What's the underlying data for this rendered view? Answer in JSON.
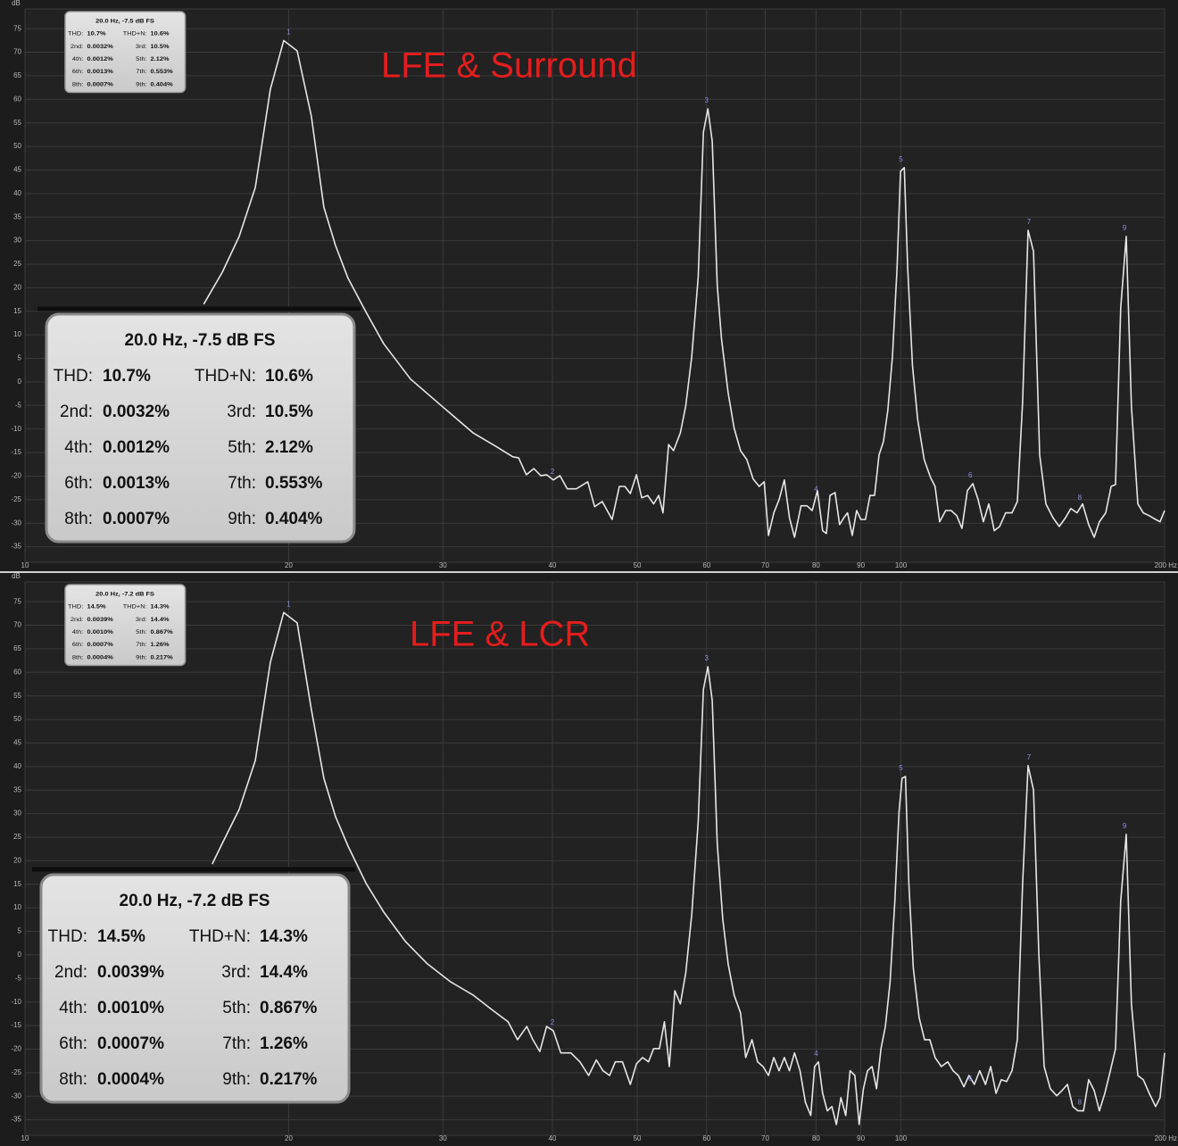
{
  "chart_data": [
    {
      "type": "line",
      "title": "LFE & Surround",
      "y_label": "dB",
      "xscale": "log",
      "grid": true,
      "color": "#e6e6e6",
      "xlim": [
        10,
        200
      ],
      "ylim": [
        -38.3,
        79.2
      ],
      "xticks": [
        10,
        20,
        30,
        40,
        50,
        60,
        70,
        80,
        90,
        100,
        {
          "value": 200,
          "label": "200 Hz"
        }
      ],
      "yticks": [
        75,
        70,
        65,
        60,
        55,
        50,
        45,
        40,
        35,
        30,
        25,
        20,
        15,
        10,
        5,
        0,
        -5,
        -10,
        -15,
        -20,
        -25,
        -30,
        -35
      ],
      "x": [
        16.0,
        16.8,
        17.56,
        18.32,
        19.06,
        19.74,
        20.45,
        21.23,
        21.94,
        22.62,
        23.38,
        24.51,
        25.68,
        27.55,
        29.9,
        32.47,
        34.43,
        36.05,
        36.6,
        37.36,
        38.1,
        38.8,
        39.4,
        40.1,
        40.8,
        41.6,
        42.6,
        43.9,
        44.7,
        45.6,
        46.8,
        47.7,
        48.4,
        49.1,
        49.9,
        50.6,
        51.4,
        52.2,
        52.9,
        53.5,
        54.3,
        55.0,
        56.0,
        56.8,
        57.7,
        58.7,
        59.5,
        60.2,
        60.9,
        61.7,
        62.4,
        63.5,
        64.5,
        65.6,
        66.7,
        67.8,
        68.9,
        69.8,
        70.6,
        71.6,
        72.6,
        73.6,
        74.6,
        75.6,
        76.9,
        78.1,
        79.2,
        80.3,
        81.4,
        82.2,
        83.0,
        84.1,
        85.1,
        86.1,
        86.9,
        88.0,
        89.0,
        90.0,
        91.1,
        92.2,
        93.3,
        94.4,
        95.5,
        96.6,
        97.8,
        99.0,
        99.9,
        100.9,
        101.8,
        103.1,
        104.5,
        106.3,
        108.1,
        109.4,
        110.7,
        112.5,
        114.1,
        115.8,
        117.4,
        119.1,
        120.8,
        122.5,
        124.2,
        126.0,
        127.8,
        129.6,
        131.7,
        133.9,
        135.8,
        137.7,
        139.7,
        141.7,
        144.0,
        146.4,
        149.1,
        151.6,
        154.2,
        156.3,
        158.9,
        161.2,
        163.8,
        166.2,
        168.5,
        171.3,
        173.8,
        175.8,
        178.2,
        180.8,
        183.3,
        186.4,
        189.1,
        192.1,
        195.3,
        197.6,
        200
      ],
      "values": [
        16.5,
        23.3,
        30.9,
        41.3,
        62.1,
        72.5,
        70.3,
        56.4,
        37.1,
        29.0,
        22.0,
        14.8,
        8.1,
        0.6,
        -5.1,
        -10.8,
        -13.6,
        -15.9,
        -16.1,
        -19.7,
        -18.4,
        -19.9,
        -19.7,
        -20.8,
        -19.9,
        -22.7,
        -22.7,
        -21.2,
        -26.5,
        -25.4,
        -29.2,
        -22.2,
        -22.2,
        -23.7,
        -19.7,
        -24.6,
        -24.1,
        -25.9,
        -24.1,
        -27.8,
        -13.3,
        -14.6,
        -10.8,
        -5.1,
        5.3,
        22.3,
        53.0,
        58.0,
        51.1,
        20.5,
        9.1,
        -2.3,
        -9.8,
        -14.6,
        -16.5,
        -20.6,
        -22.2,
        -21.2,
        -32.6,
        -27.8,
        -25.0,
        -20.8,
        -28.8,
        -33.0,
        -26.3,
        -26.3,
        -27.3,
        -23.1,
        -31.6,
        -32.2,
        -24.1,
        -23.5,
        -30.3,
        -28.8,
        -27.8,
        -32.6,
        -27.3,
        -29.2,
        -29.2,
        -24.1,
        -24.1,
        -15.5,
        -12.7,
        -6.1,
        5.3,
        24.2,
        44.7,
        45.5,
        24.2,
        3.4,
        -8.0,
        -16.5,
        -20.3,
        -22.2,
        -29.7,
        -27.3,
        -27.3,
        -28.4,
        -31.1,
        -23.1,
        -21.6,
        -25.0,
        -29.7,
        -25.9,
        -31.6,
        -30.7,
        -27.8,
        -27.8,
        -25.4,
        -4.2,
        32.2,
        27.7,
        -15.5,
        -25.9,
        -28.8,
        -30.7,
        -28.8,
        -26.9,
        -27.8,
        -25.9,
        -30.3,
        -33.0,
        -29.7,
        -27.8,
        -22.2,
        -21.8,
        15.7,
        30.9,
        -5.1,
        -25.9,
        -27.8,
        -28.4,
        -29.2,
        -29.7,
        -27.3
      ],
      "harmonics": {
        "labels": [
          1,
          2,
          3,
          4,
          5,
          6,
          7,
          8,
          9
        ],
        "x": [
          20,
          40,
          60,
          80,
          100,
          120,
          140,
          160,
          180
        ],
        "values": [
          72.5,
          -20.8,
          58.0,
          -24.5,
          45.5,
          -21.6,
          32.2,
          -26.3,
          30.9
        ]
      },
      "info": {
        "title": "20.0 Hz, -7.5 dB FS",
        "rows": [
          [
            "THD:",
            "10.7%",
            "THD+N:",
            "10.6%"
          ],
          [
            "2nd:",
            "0.0032%",
            "3rd:",
            "10.5%"
          ],
          [
            "4th:",
            "0.0012%",
            "5th:",
            "2.12%"
          ],
          [
            "6th:",
            "0.0013%",
            "7th:",
            "0.553%"
          ],
          [
            "8th:",
            "0.0007%",
            "9th:",
            "0.404%"
          ]
        ]
      }
    },
    {
      "type": "line",
      "title": "LFE & LCR",
      "y_label": "dB",
      "xscale": "log",
      "grid": true,
      "color": "#e6e6e6",
      "xlim": [
        10,
        200
      ],
      "ylim": [
        -38.3,
        79.2
      ],
      "xticks": [
        10,
        20,
        30,
        40,
        50,
        60,
        70,
        80,
        90,
        100,
        {
          "value": 200,
          "label": "200 Hz"
        }
      ],
      "yticks": [
        75,
        70,
        65,
        60,
        55,
        50,
        45,
        40,
        35,
        30,
        25,
        20,
        15,
        10,
        5,
        0,
        -5,
        -10,
        -15,
        -20,
        -25,
        -30,
        -35
      ],
      "x": [
        16.36,
        16.8,
        17.56,
        18.32,
        19.06,
        19.74,
        20.45,
        21.23,
        21.94,
        22.62,
        23.38,
        24.51,
        25.68,
        27.2,
        28.8,
        30.6,
        32.47,
        34.0,
        35.6,
        36.5,
        37.4,
        38.0,
        38.7,
        39.4,
        40.1,
        40.9,
        42.0,
        43.0,
        44.0,
        44.9,
        45.7,
        46.5,
        47.2,
        48.1,
        49.1,
        49.9,
        50.7,
        51.5,
        52.2,
        53.0,
        53.7,
        54.4,
        55.2,
        56.0,
        56.8,
        57.7,
        58.7,
        59.5,
        60.2,
        60.9,
        61.7,
        62.6,
        63.5,
        64.5,
        65.6,
        66.5,
        67.6,
        68.6,
        69.6,
        70.6,
        71.6,
        72.6,
        73.6,
        74.6,
        75.6,
        76.7,
        77.8,
        78.9,
        79.7,
        80.5,
        81.4,
        82.4,
        83.4,
        84.4,
        85.4,
        86.5,
        87.5,
        88.6,
        89.6,
        90.6,
        91.6,
        92.7,
        93.8,
        94.9,
        96.0,
        97.2,
        98.4,
        99.5,
        100.3,
        101.2,
        102.1,
        103.3,
        104.9,
        106.4,
        107.9,
        109.4,
        111.2,
        113.1,
        114.7,
        116.3,
        118.0,
        119.6,
        121.3,
        123.0,
        124.9,
        126.6,
        128.4,
        130.2,
        132.0,
        133.9,
        135.8,
        137.7,
        139.7,
        141.7,
        143.7,
        145.7,
        148.1,
        150.6,
        152.7,
        154.9,
        157.1,
        159.3,
        161.6,
        163.8,
        166.2,
        168.5,
        170.9,
        173.4,
        175.8,
        178.2,
        180.8,
        183.3,
        186.4,
        189.1,
        192.1,
        195.3,
        197.6,
        200
      ],
      "values": [
        19.3,
        23.7,
        30.9,
        41.3,
        62.1,
        72.7,
        70.5,
        52.1,
        37.5,
        29.4,
        23.1,
        15.2,
        9.1,
        2.8,
        -1.9,
        -5.7,
        -8.5,
        -11.4,
        -14.2,
        -18.0,
        -15.2,
        -18.0,
        -20.5,
        -15.2,
        -16.1,
        -20.8,
        -20.8,
        -22.7,
        -25.6,
        -22.3,
        -24.6,
        -25.6,
        -22.7,
        -22.7,
        -27.5,
        -23.1,
        -21.8,
        -22.7,
        -19.9,
        -19.9,
        -14.2,
        -23.7,
        -7.6,
        -10.4,
        -3.8,
        8.5,
        28.4,
        56.4,
        61.2,
        54.0,
        23.7,
        7.6,
        -1.9,
        -8.5,
        -12.3,
        -21.8,
        -18.0,
        -22.7,
        -23.7,
        -25.6,
        -21.8,
        -24.6,
        -21.8,
        -24.6,
        -20.8,
        -24.6,
        -31.3,
        -34.1,
        -23.7,
        -22.7,
        -29.4,
        -33.1,
        -32.2,
        -36.0,
        -30.3,
        -34.1,
        -24.6,
        -25.6,
        -36.0,
        -28.4,
        -24.6,
        -23.7,
        -28.4,
        -19.9,
        -15.2,
        -5.7,
        11.4,
        30.3,
        37.5,
        37.9,
        15.2,
        -2.8,
        -13.3,
        -18.0,
        -18.0,
        -21.8,
        -23.7,
        -22.7,
        -24.6,
        -25.6,
        -28.0,
        -25.6,
        -27.5,
        -24.6,
        -27.5,
        -23.7,
        -29.4,
        -26.5,
        -26.9,
        -24.6,
        -18.0,
        15.2,
        40.2,
        35.0,
        0.0,
        -23.7,
        -28.4,
        -29.9,
        -28.8,
        -27.5,
        -32.2,
        -33.1,
        -33.1,
        -26.5,
        -28.8,
        -33.1,
        -29.4,
        -24.6,
        -19.9,
        11.4,
        25.6,
        -10.4,
        -25.6,
        -26.5,
        -29.4,
        -32.2,
        -30.3,
        -20.8
      ],
      "harmonics": {
        "labels": [
          1,
          2,
          3,
          4,
          5,
          6,
          7,
          8,
          9
        ],
        "x": [
          20,
          40,
          60,
          80,
          100,
          120,
          140,
          160,
          180
        ],
        "values": [
          72.7,
          -16.1,
          61.2,
          -22.7,
          37.9,
          -28.0,
          40.2,
          -33.1,
          25.6
        ]
      },
      "info": {
        "title": "20.0 Hz, -7.2 dB FS",
        "rows": [
          [
            "THD:",
            "14.5%",
            "THD+N:",
            "14.3%"
          ],
          [
            "2nd:",
            "0.0039%",
            "3rd:",
            "14.4%"
          ],
          [
            "4th:",
            "0.0010%",
            "5th:",
            "0.867%"
          ],
          [
            "6th:",
            "0.0007%",
            "7th:",
            "1.26%"
          ],
          [
            "8th:",
            "0.0004%",
            "9th:",
            "0.217%"
          ]
        ]
      }
    }
  ]
}
